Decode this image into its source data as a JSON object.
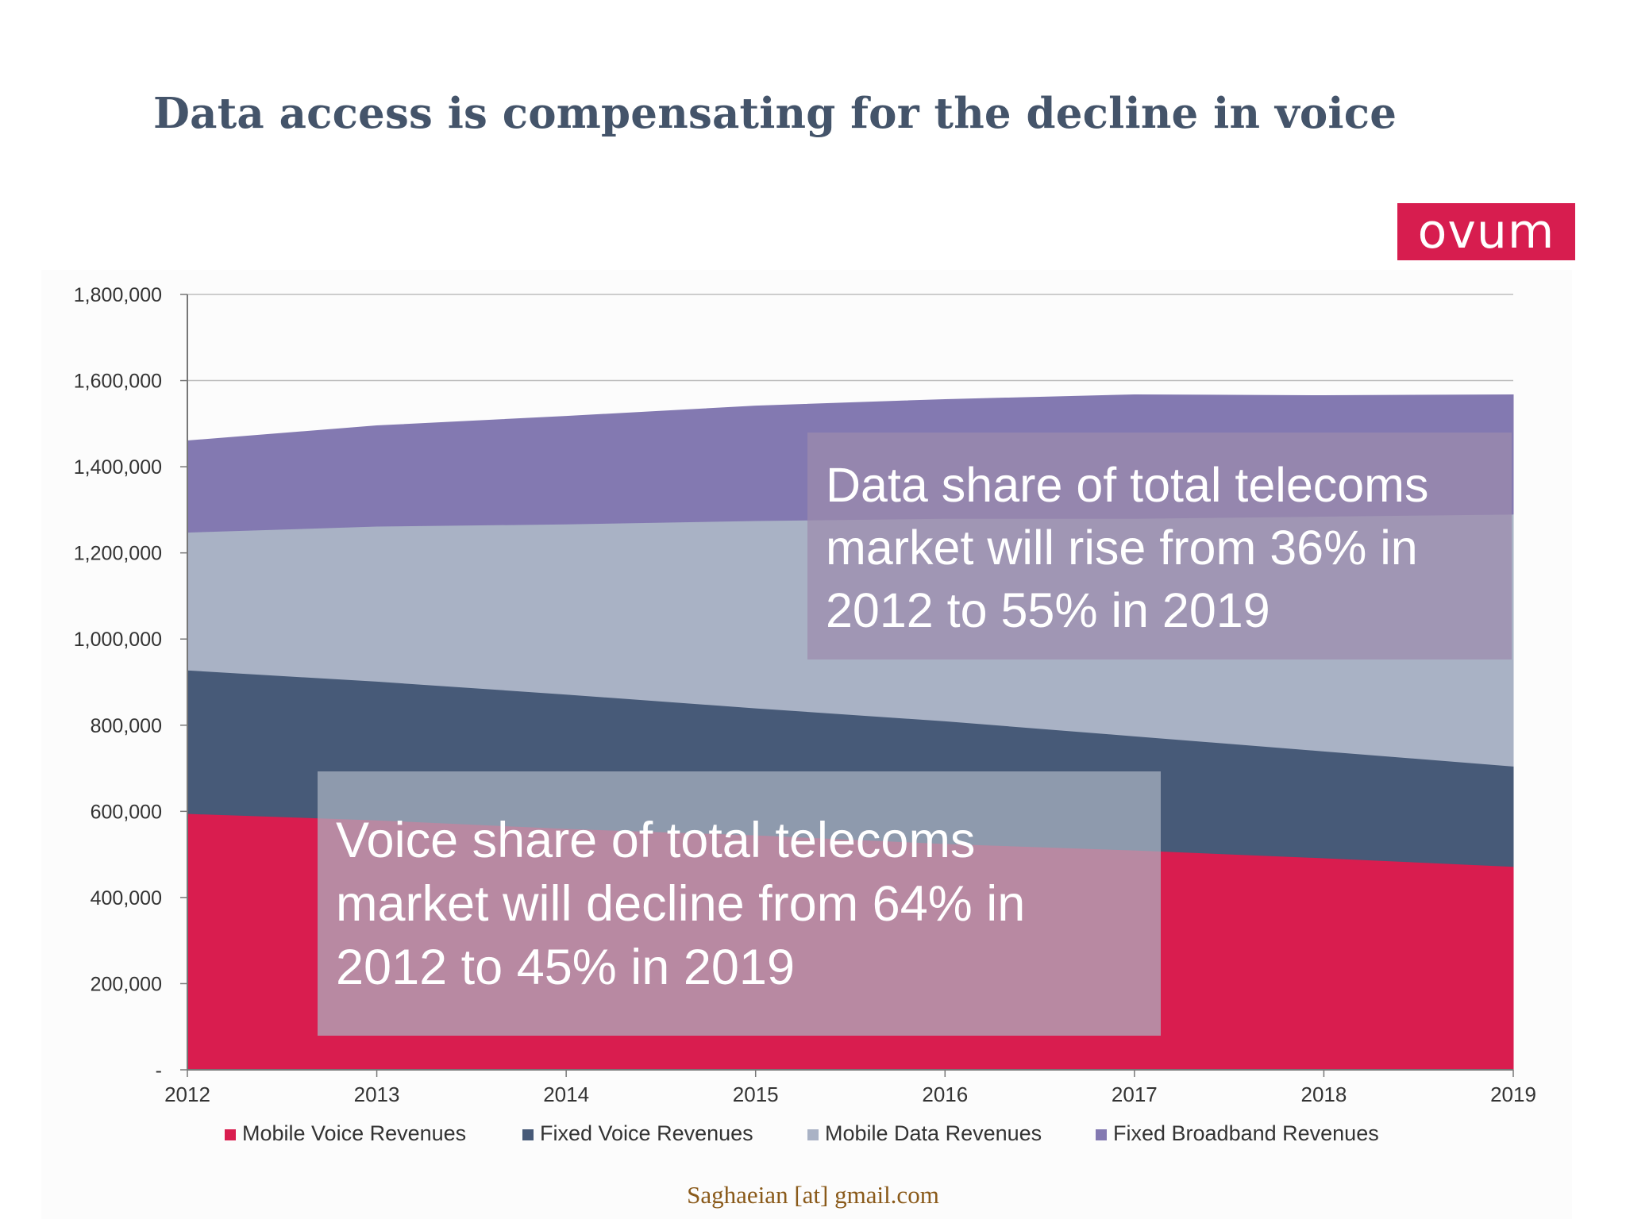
{
  "page": {
    "title": "Data access is compensating for the decline in voice",
    "logo_text": "ovum",
    "footer": "Saghaeian [at] gmail.com"
  },
  "chart_data": {
    "type": "area",
    "stacked": true,
    "x": [
      "2012",
      "2013",
      "2014",
      "2015",
      "2016",
      "2017",
      "2018",
      "2019"
    ],
    "ylim": [
      0,
      1800000
    ],
    "yticks": [
      0,
      200000,
      400000,
      600000,
      800000,
      1000000,
      1200000,
      1400000,
      1600000,
      1800000
    ],
    "ytick_labels": [
      "-",
      "200,000",
      "400,000",
      "600,000",
      "800,000",
      "1,000,000",
      "1,200,000",
      "1,400,000",
      "1,600,000",
      "1,800,000"
    ],
    "grid": true,
    "legend": "bottom",
    "series": [
      {
        "name": "Mobile Voice Revenues",
        "color": "#d91d4f",
        "values": [
          595000,
          580000,
          560000,
          545000,
          525000,
          510000,
          492000,
          472000
        ]
      },
      {
        "name": "Fixed Voice Revenues",
        "color": "#475a78",
        "values": [
          333000,
          322000,
          312000,
          295000,
          285000,
          265000,
          248000,
          233000
        ]
      },
      {
        "name": "Mobile Data Revenues",
        "color": "#a9b2c5",
        "values": [
          320000,
          360000,
          395000,
          435000,
          470000,
          505000,
          545000,
          585000
        ]
      },
      {
        "name": "Fixed Broadband Revenues",
        "color": "#8379b1",
        "values": [
          212000,
          233000,
          250000,
          266000,
          276000,
          287000,
          280000,
          277000
        ]
      }
    ],
    "annotations": [
      {
        "lines": [
          "Data share of total telecoms",
          "market will rise from 36% in",
          "2012 to 55% in 2019"
        ],
        "color": "#9d8bad"
      },
      {
        "lines": [
          "Voice share of total telecoms",
          "market will decline from 64% in",
          "2012 to 45% in 2019"
        ],
        "color": "#aab3c2"
      }
    ]
  }
}
